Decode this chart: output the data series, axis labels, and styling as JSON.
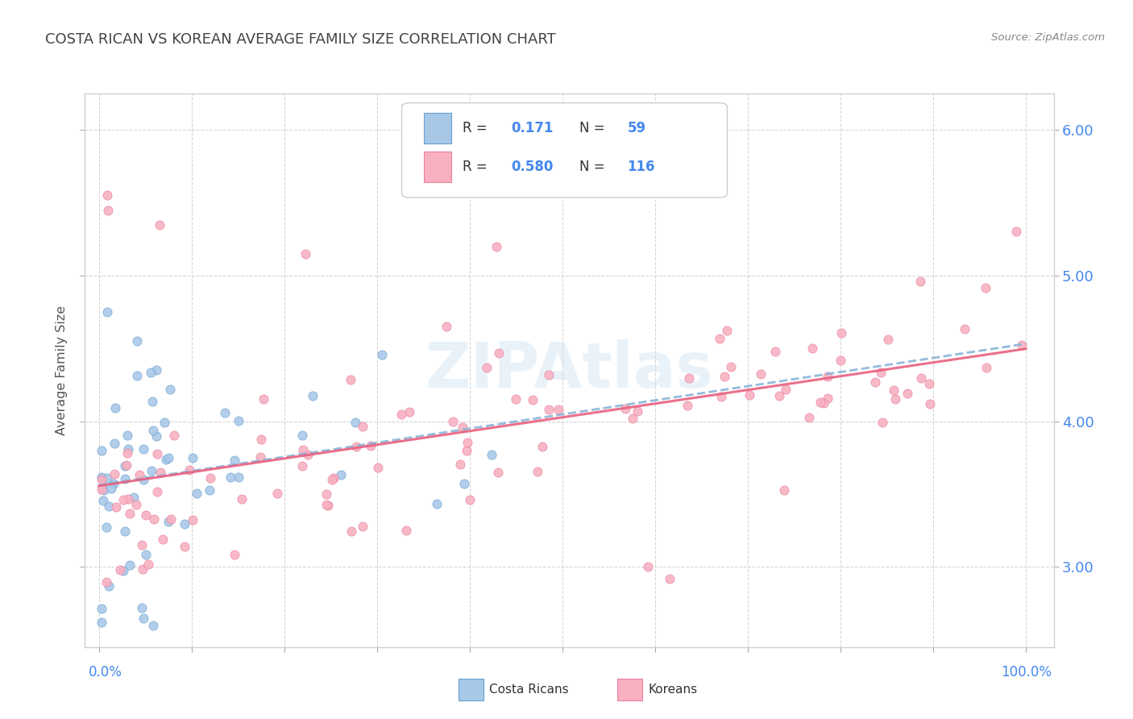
{
  "title": "COSTA RICAN VS KOREAN AVERAGE FAMILY SIZE CORRELATION CHART",
  "source": "Source: ZipAtlas.com",
  "ylabel": "Average Family Size",
  "watermark": "ZIPAtlas",
  "cr_R": 0.171,
  "cr_N": 59,
  "ko_R": 0.58,
  "ko_N": 116,
  "cr_color": "#a8c8e8",
  "ko_color": "#f8b0c0",
  "cr_edge_color": "#6aa0d0",
  "ko_edge_color": "#e880a0",
  "cr_line_color": "#8ab4d8",
  "ko_line_color": "#e86080",
  "background_color": "#ffffff",
  "grid_color": "#cccccc",
  "title_color": "#444444",
  "axis_label_color": "#4488ee",
  "ylim_bottom": 2.45,
  "ylim_top": 6.25,
  "yticks_right": [
    3.0,
    4.0,
    5.0,
    6.0
  ],
  "xlim_left": -1.5,
  "xlim_right": 103.0
}
